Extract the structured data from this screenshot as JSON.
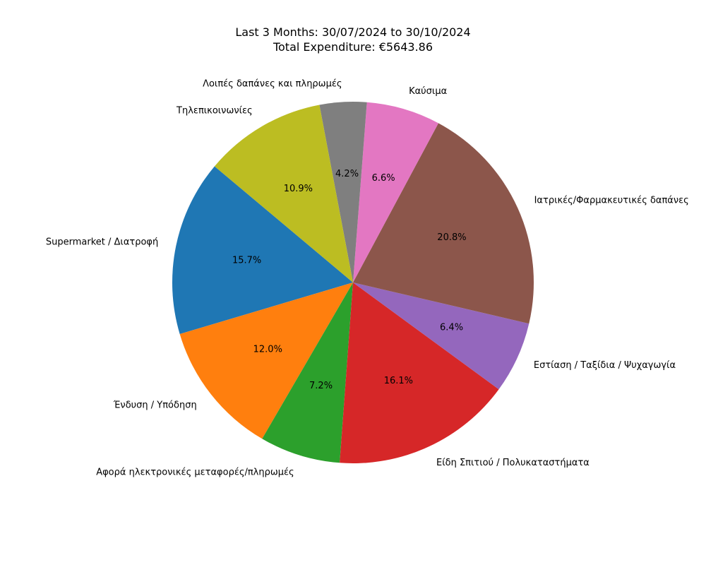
{
  "chart_data": {
    "type": "pie",
    "title": [
      "Last 3 Months: 30/07/2024 to 30/10/2024",
      "Total Expenditure: €5643.86"
    ],
    "start_angle_deg": 140,
    "direction": "counterclockwise",
    "slices": [
      {
        "label": "Supermarket / Διατροφή",
        "value": 15.7,
        "pct_label": "15.7%",
        "color": "#1f77b4"
      },
      {
        "label": "Ένδυση / Υπόδηση",
        "value": 12.0,
        "pct_label": "12.0%",
        "color": "#ff7f0e"
      },
      {
        "label": "Αφορά ηλεκτρονικές μεταφορές/πληρωμές",
        "value": 7.2,
        "pct_label": "7.2%",
        "color": "#2ca02c"
      },
      {
        "label": "Είδη Σπιτιού / Πολυκαταστήματα",
        "value": 16.1,
        "pct_label": "16.1%",
        "color": "#d62728"
      },
      {
        "label": "Εστίαση / Ταξίδια / Ψυχαγωγία",
        "value": 6.4,
        "pct_label": "6.4%",
        "color": "#9467bd"
      },
      {
        "label": "Ιατρικές/Φαρμακευτικές δαπάνες",
        "value": 20.8,
        "pct_label": "20.8%",
        "color": "#8c564b"
      },
      {
        "label": "Καύσιμα",
        "value": 6.6,
        "pct_label": "6.6%",
        "color": "#e377c2"
      },
      {
        "label": "Λοιπές δαπάνες και πληρωμές",
        "value": 4.2,
        "pct_label": "4.2%",
        "color": "#7f7f7f"
      },
      {
        "label": "Τηλεπικοινωνίες",
        "value": 10.9,
        "pct_label": "10.9%",
        "color": "#bcbd22"
      }
    ]
  }
}
